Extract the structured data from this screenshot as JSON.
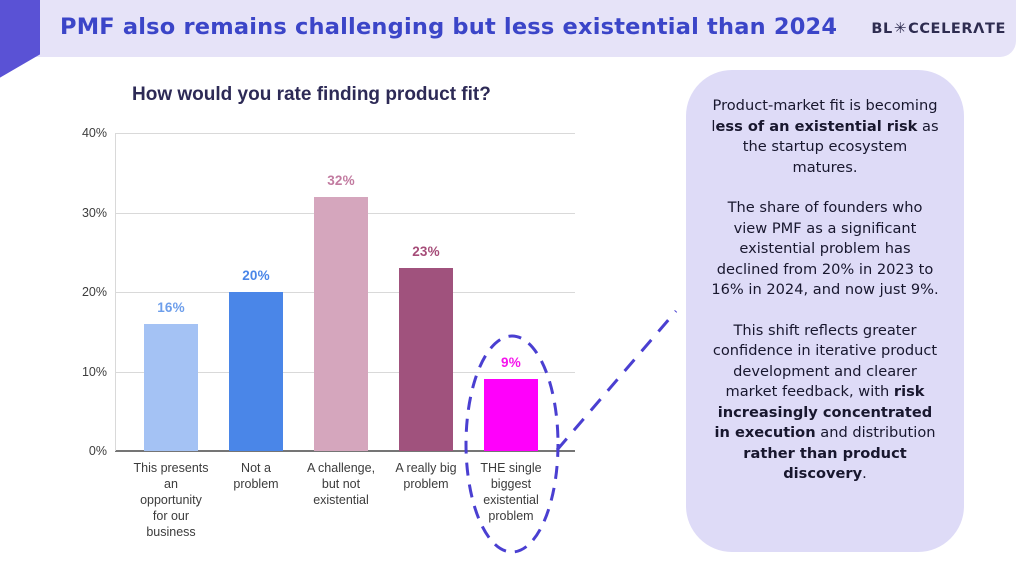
{
  "header": {
    "title": "PMF also remains challenging but less existential than 2024",
    "logo": {
      "p1": "BL",
      "icon": "✳",
      "p2": "CCELERΛTE",
      "brand": "BLOCCELERATE"
    }
  },
  "colors": {
    "ribbon": "#5a52d5",
    "band_bg": "#e6e3f8",
    "header_text": "#3b45c8",
    "panel_bg": "#dedbf7",
    "annotation": "#4a3fd1",
    "grid": "#d9d9d9",
    "baseline": "#757575"
  },
  "chart_data": {
    "type": "bar",
    "title": "How would you rate finding product fit?",
    "categories": [
      "This presents an opportunity for our business",
      "Not a problem",
      "A challenge, but not existential",
      "A really big problem",
      "THE single biggest existential problem"
    ],
    "category_lines": [
      [
        "This presents",
        "an",
        "opportunity",
        "for our",
        "business"
      ],
      [
        "Not a",
        "problem"
      ],
      [
        "A challenge,",
        "but not",
        "existential"
      ],
      [
        "A really big",
        "problem"
      ],
      [
        "THE single",
        "biggest",
        "existential",
        "problem"
      ]
    ],
    "values": [
      16,
      20,
      32,
      23,
      9
    ],
    "value_labels": [
      "16%",
      "20%",
      "32%",
      "23%",
      "9%"
    ],
    "bar_colors": [
      "#a4c2f4",
      "#4a86e8",
      "#d5a6bd",
      "#a0527d",
      "#ff00fb"
    ],
    "label_colors": [
      "#6d9eeb",
      "#4a86e8",
      "#c27ba0",
      "#a64d79",
      "#f513ec"
    ],
    "xlabel": "",
    "ylabel": "",
    "ylim": [
      0,
      40
    ],
    "yticks": [
      {
        "value": 0,
        "label": "0%"
      },
      {
        "value": 10,
        "label": "10%"
      },
      {
        "value": 20,
        "label": "20%"
      },
      {
        "value": 30,
        "label": "30%"
      },
      {
        "value": 40,
        "label": "40%"
      }
    ],
    "grid": true,
    "legend": false,
    "highlight_index": 4
  },
  "annotation": {
    "color": "#4a3fd1"
  },
  "panel": {
    "paragraphs": [
      {
        "segments": [
          {
            "text": "Product-market fit is becoming l",
            "bold": false
          },
          {
            "text": "ess of an existential risk",
            "bold": true
          },
          {
            "text": " as the startup ecosystem matures.",
            "bold": false
          }
        ]
      },
      {
        "segments": [
          {
            "text": "The share of founders who view PMF as a significant existential problem has declined from 20% in 2023 to 16% in 2024, and now just 9%.",
            "bold": false
          }
        ]
      },
      {
        "segments": [
          {
            "text": "This shift reflects greater confidence in iterative product development and clearer market feedback, with ",
            "bold": false
          },
          {
            "text": "risk increasingly concentrated in execution",
            "bold": true
          },
          {
            "text": " and distribution ",
            "bold": false
          },
          {
            "text": "rather than product discovery",
            "bold": true
          },
          {
            "text": ".",
            "bold": false
          }
        ]
      }
    ]
  }
}
